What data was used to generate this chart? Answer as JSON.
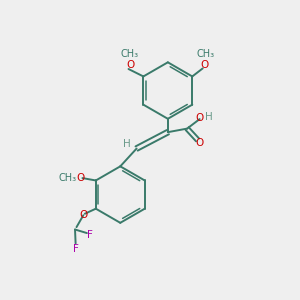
{
  "background_color": "#efefef",
  "bond_color": "#3a7a6a",
  "atom_colors": {
    "O": "#cc0000",
    "F": "#aa00aa",
    "H_gray": "#6a9a8a",
    "C": "#3a7a6a"
  },
  "figsize": [
    3.0,
    3.0
  ],
  "dpi": 100,
  "xlim": [
    0,
    10
  ],
  "ylim": [
    0,
    10
  ]
}
